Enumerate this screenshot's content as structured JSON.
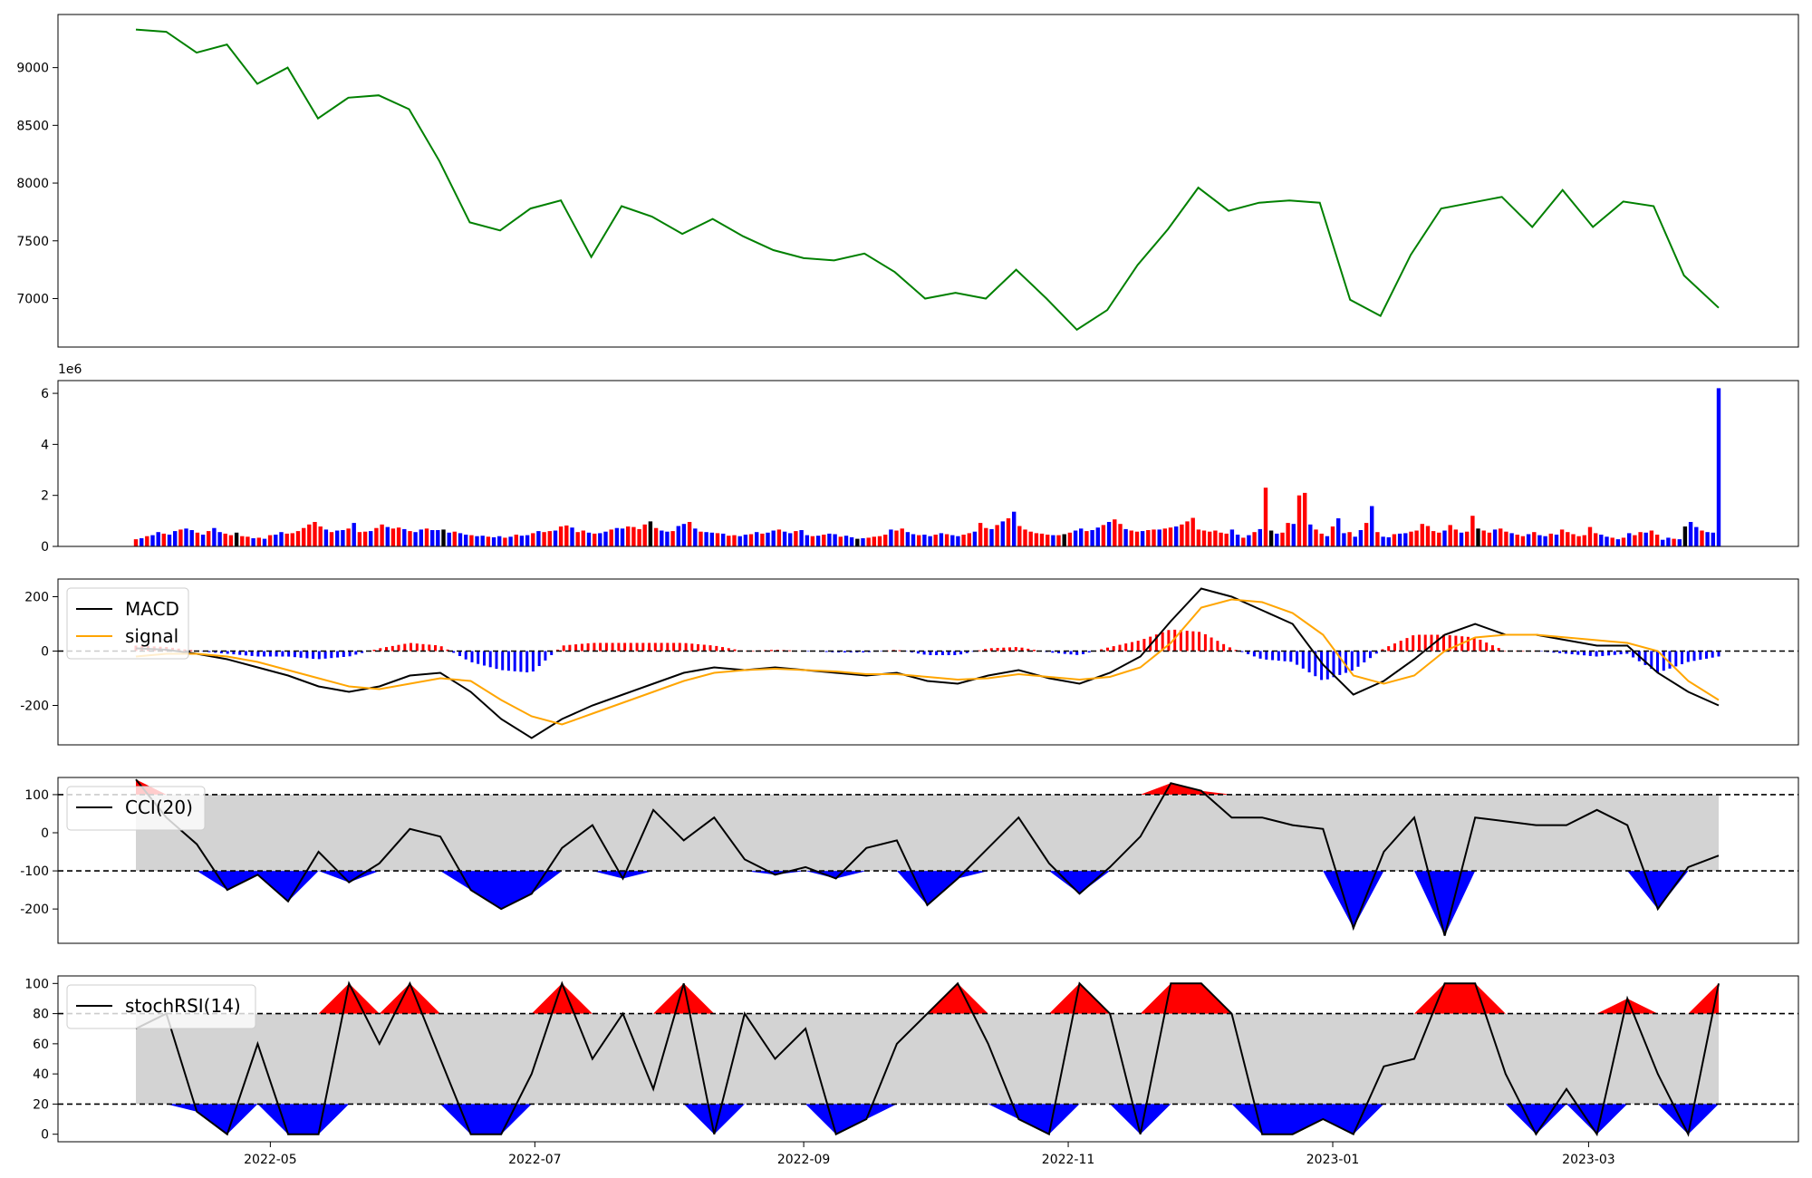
{
  "chart_data": [
    {
      "type": "line",
      "title": "",
      "ylim": [
        6580,
        9460
      ],
      "yticks": [
        7000,
        7500,
        8000,
        8500,
        9000
      ],
      "color": "#008000",
      "grid": false,
      "dates": [
        "2022-03-31",
        "2022-04-07",
        "2022-04-14",
        "2022-04-21",
        "2022-04-28",
        "2022-05-05",
        "2022-05-12",
        "2022-05-19",
        "2022-05-26",
        "2022-06-02",
        "2022-06-09",
        "2022-06-16",
        "2022-06-23",
        "2022-06-30",
        "2022-07-07",
        "2022-07-14",
        "2022-07-21",
        "2022-07-28",
        "2022-08-04",
        "2022-08-11",
        "2022-08-18",
        "2022-08-25",
        "2022-09-01",
        "2022-09-08",
        "2022-09-15",
        "2022-09-22",
        "2022-09-29",
        "2022-10-06",
        "2022-10-13",
        "2022-10-20",
        "2022-10-27",
        "2022-11-03",
        "2022-11-10",
        "2022-11-17",
        "2022-11-24",
        "2022-12-01",
        "2022-12-08",
        "2022-12-15",
        "2022-12-22",
        "2022-12-29",
        "2023-01-05",
        "2023-01-12",
        "2023-01-19",
        "2023-01-26",
        "2023-02-02",
        "2023-02-09",
        "2023-02-16",
        "2023-02-23",
        "2023-03-02",
        "2023-03-09",
        "2023-03-16",
        "2023-03-23",
        "2023-03-31"
      ],
      "values": [
        9330,
        9310,
        9130,
        9200,
        8860,
        9000,
        8560,
        8740,
        8760,
        8640,
        8190,
        7660,
        7590,
        7780,
        7850,
        7360,
        7800,
        7710,
        7560,
        7690,
        7540,
        7420,
        7350,
        7330,
        7390,
        7230,
        7000,
        7050,
        7000,
        7250,
        7000,
        6730,
        6900,
        7290,
        7600,
        7960,
        7760,
        7830,
        7850,
        7830,
        6990,
        6850,
        7380,
        7780,
        7830,
        7880,
        7620,
        7940,
        7620,
        7840,
        7800,
        7200,
        6920
      ]
    },
    {
      "type": "bar",
      "ylim": [
        0,
        6500000
      ],
      "yticks": [
        0,
        2,
        4,
        6
      ],
      "offset_label": "1e6",
      "colors": {
        "up": "#ff0000",
        "down": "#0000ff",
        "flat": "#000000"
      },
      "values": [
        0.28,
        0.32,
        0.4,
        0.44,
        0.56,
        0.5,
        0.46,
        0.6,
        0.66,
        0.7,
        0.64,
        0.54,
        0.46,
        0.6,
        0.72,
        0.56,
        0.5,
        0.44,
        0.54,
        0.4,
        0.38,
        0.32,
        0.34,
        0.3,
        0.44,
        0.46,
        0.56,
        0.5,
        0.52,
        0.6,
        0.72,
        0.86,
        0.96,
        0.78,
        0.66,
        0.56,
        0.62,
        0.64,
        0.7,
        0.92,
        0.56,
        0.58,
        0.6,
        0.72,
        0.86,
        0.76,
        0.7,
        0.74,
        0.68,
        0.6,
        0.56,
        0.66,
        0.7,
        0.64,
        0.64,
        0.66,
        0.54,
        0.58,
        0.52,
        0.46,
        0.44,
        0.4,
        0.42,
        0.38,
        0.36,
        0.4,
        0.34,
        0.38,
        0.46,
        0.42,
        0.44,
        0.52,
        0.6,
        0.56,
        0.6,
        0.62,
        0.78,
        0.82,
        0.74,
        0.56,
        0.62,
        0.54,
        0.5,
        0.52,
        0.58,
        0.66,
        0.72,
        0.7,
        0.78,
        0.76,
        0.68,
        0.86,
        0.98,
        0.72,
        0.62,
        0.58,
        0.6,
        0.8,
        0.88,
        0.96,
        0.7,
        0.58,
        0.56,
        0.54,
        0.52,
        0.5,
        0.42,
        0.44,
        0.4,
        0.46,
        0.48,
        0.56,
        0.5,
        0.54,
        0.62,
        0.66,
        0.58,
        0.52,
        0.6,
        0.64,
        0.44,
        0.4,
        0.42,
        0.46,
        0.5,
        0.48,
        0.38,
        0.42,
        0.36,
        0.3,
        0.32,
        0.34,
        0.38,
        0.4,
        0.46,
        0.66,
        0.62,
        0.7,
        0.56,
        0.48,
        0.44,
        0.46,
        0.4,
        0.46,
        0.52,
        0.48,
        0.44,
        0.4,
        0.46,
        0.52,
        0.58,
        0.92,
        0.72,
        0.68,
        0.84,
        0.98,
        1.1,
        1.36,
        0.8,
        0.66,
        0.58,
        0.52,
        0.5,
        0.46,
        0.44,
        0.44,
        0.48,
        0.54,
        0.62,
        0.7,
        0.6,
        0.64,
        0.74,
        0.84,
        0.96,
        1.06,
        0.88,
        0.68,
        0.62,
        0.58,
        0.6,
        0.64,
        0.66,
        0.66,
        0.7,
        0.74,
        0.78,
        0.86,
        0.98,
        1.12,
        0.66,
        0.62,
        0.58,
        0.62,
        0.54,
        0.5,
        0.66,
        0.46,
        0.34,
        0.44,
        0.56,
        0.68,
        2.3,
        0.62,
        0.5,
        0.54,
        0.92,
        0.88,
        2.0,
        2.1,
        0.86,
        0.66,
        0.5,
        0.4,
        0.78,
        1.1,
        0.52,
        0.56,
        0.38,
        0.64,
        0.92,
        1.58,
        0.56,
        0.38,
        0.36,
        0.48,
        0.5,
        0.52,
        0.58,
        0.62,
        0.88,
        0.8,
        0.6,
        0.54,
        0.62,
        0.84,
        0.66,
        0.54,
        0.58,
        1.2,
        0.7,
        0.62,
        0.54,
        0.66,
        0.7,
        0.58,
        0.52,
        0.46,
        0.4,
        0.48,
        0.56,
        0.44,
        0.4,
        0.5,
        0.46,
        0.66,
        0.56,
        0.48,
        0.4,
        0.44,
        0.76,
        0.52,
        0.46,
        0.38,
        0.34,
        0.28,
        0.34,
        0.52,
        0.44,
        0.56,
        0.54,
        0.62,
        0.46,
        0.26,
        0.34,
        0.3,
        0.28,
        0.78,
        0.96,
        0.76,
        0.62,
        0.56,
        0.54,
        6.2
      ],
      "value_unit": "1e6"
    },
    {
      "type": "line",
      "ylim": [
        -345,
        265
      ],
      "yticks": [
        -200,
        0,
        200
      ],
      "zero_line": true,
      "legend": [
        "MACD",
        "signal"
      ],
      "legend_position": "upper-left",
      "series": [
        {
          "name": "MACD",
          "color": "#000000",
          "values": [
            10,
            5,
            -10,
            -30,
            -60,
            -90,
            -130,
            -150,
            -130,
            -90,
            -80,
            -150,
            -250,
            -320,
            -250,
            -200,
            -160,
            -120,
            -80,
            -60,
            -70,
            -60,
            -70,
            -80,
            -90,
            -80,
            -110,
            -120,
            -90,
            -70,
            -100,
            -120,
            -80,
            -20,
            110,
            230,
            200,
            150,
            100,
            -50,
            -160,
            -110,
            -30,
            60,
            100,
            60,
            60,
            40,
            20,
            20,
            -80,
            -150,
            -200
          ]
        },
        {
          "name": "signal",
          "color": "#ffa500",
          "values": [
            -20,
            -10,
            -10,
            -20,
            -40,
            -70,
            -100,
            -130,
            -140,
            -120,
            -100,
            -110,
            -180,
            -240,
            -270,
            -230,
            -190,
            -150,
            -110,
            -80,
            -70,
            -65,
            -70,
            -75,
            -85,
            -85,
            -95,
            -105,
            -100,
            -85,
            -95,
            -105,
            -95,
            -60,
            30,
            160,
            190,
            180,
            140,
            60,
            -90,
            -120,
            -90,
            0,
            50,
            60,
            60,
            50,
            40,
            30,
            0,
            -110,
            -180
          ]
        }
      ],
      "histogram": [
        20,
        15,
        0,
        -10,
        -20,
        -20,
        -30,
        -20,
        10,
        30,
        20,
        -40,
        -70,
        -80,
        20,
        30,
        30,
        30,
        30,
        20,
        0,
        5,
        0,
        -5,
        -5,
        5,
        -15,
        -15,
        10,
        15,
        -5,
        -15,
        15,
        40,
        80,
        70,
        10,
        -30,
        -40,
        -110,
        -70,
        10,
        60,
        60,
        50,
        0,
        0,
        -10,
        -20,
        -10,
        -80,
        -40,
        -20
      ],
      "histogram_colors": {
        "positive": "#ff0000",
        "negative": "#0000ff"
      }
    },
    {
      "type": "line",
      "ylim": [
        -290,
        145
      ],
      "yticks": [
        -200,
        -100,
        0,
        100
      ],
      "legend": [
        "CCI(20)"
      ],
      "legend_position": "upper-left",
      "bands": [
        -100,
        100
      ],
      "band_fill": "#d3d3d3",
      "above_fill": "#ff0000",
      "below_fill": "#0000ff",
      "series": [
        {
          "name": "CCI(20)",
          "color": "#000000",
          "values": [
            140,
            40,
            -30,
            -150,
            -110,
            -180,
            -50,
            -130,
            -80,
            10,
            -10,
            -150,
            -200,
            -160,
            -40,
            20,
            -120,
            60,
            -20,
            40,
            -70,
            -110,
            -90,
            -120,
            -40,
            -20,
            -190,
            -120,
            -40,
            40,
            -80,
            -160,
            -90,
            -10,
            130,
            110,
            40,
            40,
            20,
            10,
            -250,
            -50,
            40,
            -270,
            40,
            30,
            20,
            20,
            60,
            20,
            -200,
            -90,
            -60
          ]
        }
      ]
    },
    {
      "type": "line",
      "ylim": [
        -5,
        105
      ],
      "yticks": [
        0,
        20,
        40,
        60,
        80,
        100
      ],
      "legend": [
        "stochRSI(14)"
      ],
      "legend_position": "upper-left",
      "bands": [
        20,
        80
      ],
      "band_fill": "#d3d3d3",
      "above_fill": "#ff0000",
      "below_fill": "#0000ff",
      "series": [
        {
          "name": "stochRSI(14)",
          "color": "#000000",
          "values": [
            70,
            80,
            15,
            0,
            60,
            0,
            0,
            100,
            60,
            100,
            50,
            0,
            0,
            40,
            100,
            50,
            80,
            30,
            100,
            0,
            80,
            50,
            70,
            0,
            10,
            60,
            80,
            100,
            60,
            10,
            0,
            100,
            80,
            0,
            100,
            100,
            80,
            0,
            0,
            10,
            0,
            45,
            50,
            100,
            100,
            40,
            0,
            30,
            0,
            90,
            40,
            0,
            100
          ]
        }
      ],
      "x_ticks": [
        "2022-05",
        "2022-07",
        "2022-09",
        "2022-11",
        "2023-01",
        "2023-03"
      ]
    }
  ]
}
